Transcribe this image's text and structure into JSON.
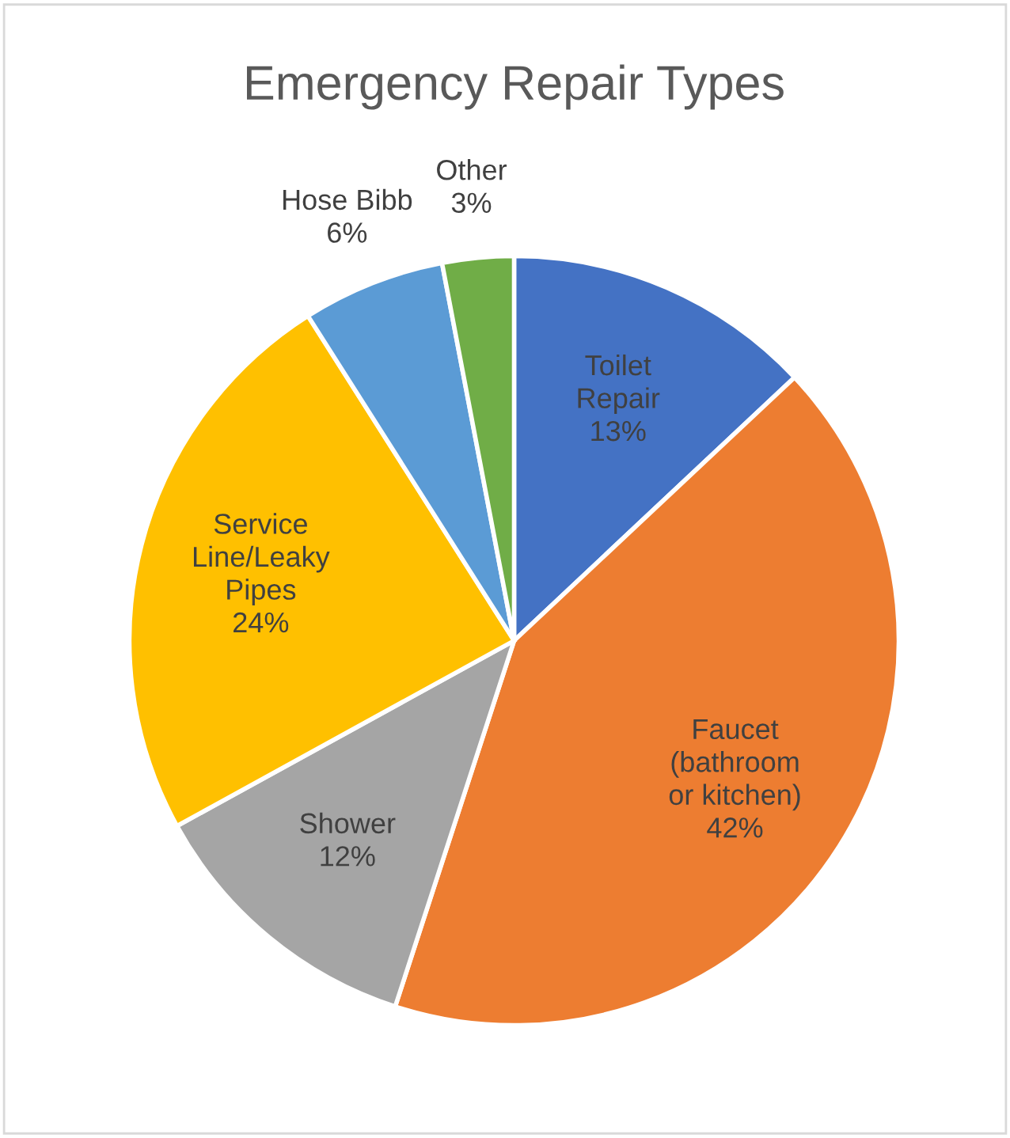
{
  "chart_data": {
    "type": "pie",
    "title": "Emergency Repair Types",
    "categories": [
      "Toilet\nRepair",
      "Faucet\n(bathroom\nor kitchen)",
      "Shower",
      "Service\nLine/Leaky\nPipes",
      "Hose Bibb",
      "Other"
    ],
    "values": [
      13,
      42,
      12,
      24,
      6,
      3
    ],
    "colors": [
      "#4472c4",
      "#ed7d31",
      "#a5a5a5",
      "#ffc000",
      "#5b9bd5",
      "#70ad47"
    ],
    "value_labels": [
      "13%",
      "42%",
      "12%",
      "24%",
      "6%",
      "3%"
    ],
    "legend": false
  }
}
